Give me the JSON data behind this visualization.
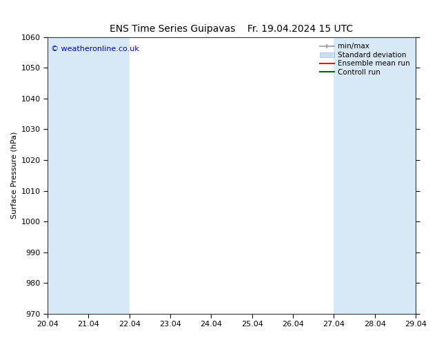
{
  "title_left": "ENS Time Series Guipavas",
  "title_right": "Fr. 19.04.2024 15 UTC",
  "ylabel": "Surface Pressure (hPa)",
  "ylim": [
    970,
    1060
  ],
  "yticks": [
    970,
    980,
    990,
    1000,
    1010,
    1020,
    1030,
    1040,
    1050,
    1060
  ],
  "xtick_labels": [
    "20.04",
    "21.04",
    "22.04",
    "23.04",
    "24.04",
    "25.04",
    "26.04",
    "27.04",
    "28.04",
    "29.04"
  ],
  "shaded_ranges_idx": [
    [
      0,
      1
    ],
    [
      1,
      2
    ],
    [
      7,
      8
    ],
    [
      8,
      9
    ],
    [
      9,
      10
    ]
  ],
  "shaded_color": "#d8eaf8",
  "copyright_text": "© weatheronline.co.uk",
  "copyright_color": "#0000cc",
  "legend_entries": [
    "min/max",
    "Standard deviation",
    "Ensemble mean run",
    "Controll run"
  ],
  "minmax_color": "#999999",
  "std_color": "#c8dff0",
  "ensemble_color": "#ff0000",
  "control_color": "#006600",
  "background_color": "#ffffff",
  "title_fontsize": 10,
  "ylabel_fontsize": 8,
  "tick_fontsize": 8,
  "legend_fontsize": 7.5,
  "copyright_fontsize": 8
}
